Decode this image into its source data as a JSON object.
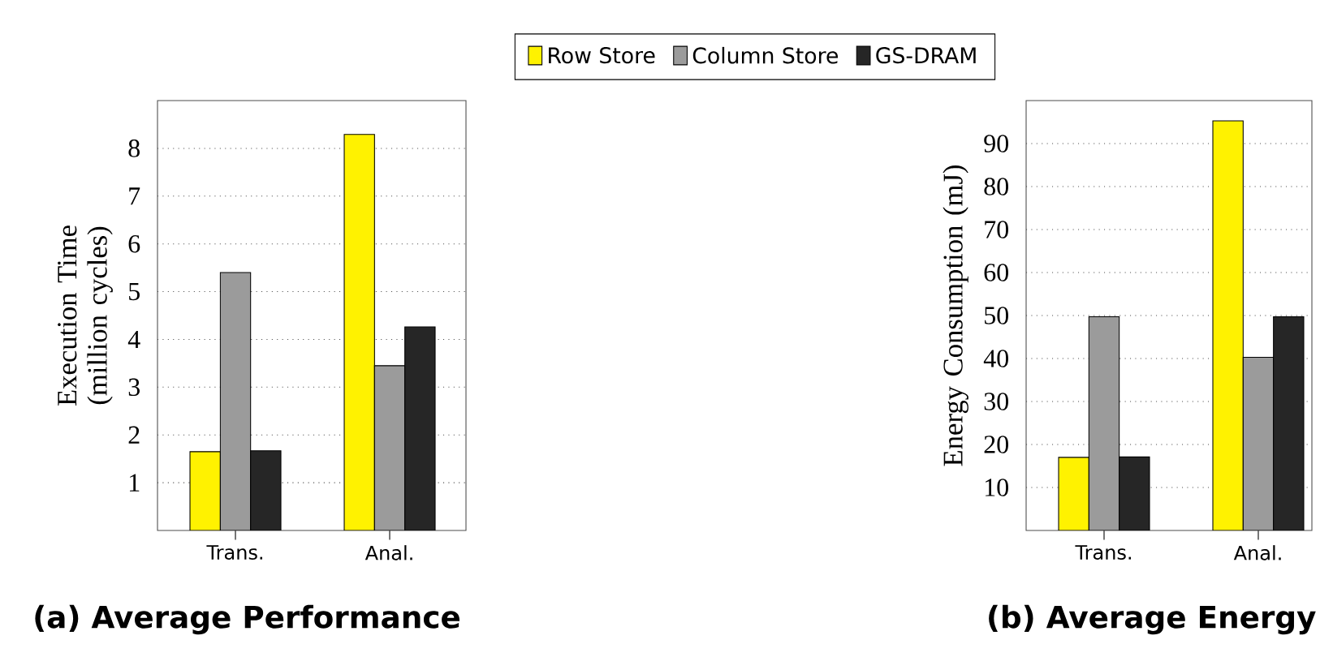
{
  "chart_data": [
    {
      "type": "bar",
      "title": "(a) Average Performance",
      "ylabel": "Execution Time (million cycles)",
      "categories": [
        "Trans.",
        "Anal."
      ],
      "series": [
        {
          "name": "Row Store",
          "color": "#fff200",
          "values": [
            1.65,
            8.29
          ]
        },
        {
          "name": "Column Store",
          "color": "#9b9b9b",
          "values": [
            5.4,
            3.45
          ]
        },
        {
          "name": "GS-DRAM",
          "color": "#262626",
          "values": [
            1.67,
            4.26
          ]
        }
      ],
      "ylim": [
        0,
        9
      ],
      "yticks": [
        1,
        2,
        3,
        4,
        5,
        6,
        7,
        8
      ],
      "grid": "y",
      "legend": "top"
    },
    {
      "type": "bar",
      "title": "(b) Average Energy",
      "ylabel": "Energy Consumption (mJ)",
      "categories": [
        "Trans.",
        "Anal."
      ],
      "series": [
        {
          "color": "#fff200",
          "values": [
            17,
            95.3
          ]
        },
        {
          "color": "#9b9b9b",
          "values": [
            49.7,
            40.3
          ]
        },
        {
          "color": "#262626",
          "values": [
            17.1,
            49.7
          ]
        }
      ],
      "ylim": [
        0,
        100
      ],
      "yticks": [
        10,
        20,
        30,
        40,
        50,
        60,
        70,
        80,
        90
      ],
      "grid": "y"
    }
  ]
}
